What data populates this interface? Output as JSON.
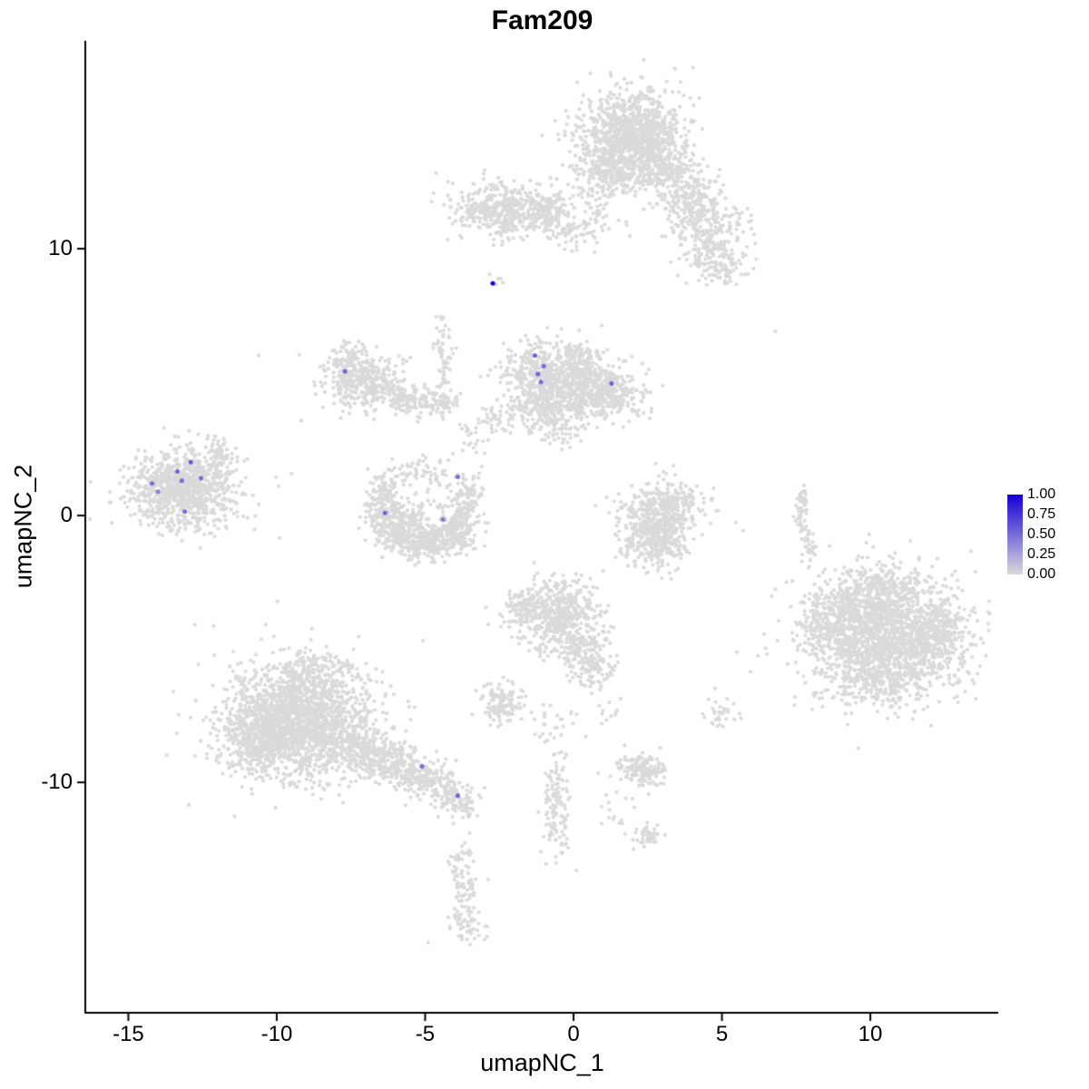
{
  "chart_data": {
    "type": "scatter",
    "title": "Fam209",
    "xlabel": "umapNC_1",
    "ylabel": "umapNC_2",
    "xlim": [
      -16.42,
      14.31
    ],
    "ylim": [
      -18.6,
      17.79
    ],
    "grid": false,
    "xticks": [
      "-15",
      "-10",
      "-5",
      "0",
      "5",
      "10"
    ],
    "xtick_values": [
      -15,
      -10,
      -5,
      0,
      5,
      10
    ],
    "yticks": [
      "10",
      "0",
      "-10"
    ],
    "ytick_values": [
      10,
      0,
      -10
    ],
    "point_color_low": "#DADADA",
    "point_color_high": "#1400D6",
    "legend": {
      "ticks": [
        "1.00",
        "0.75",
        "0.50",
        "0.25",
        "0.00"
      ],
      "position": "right"
    },
    "background_clusters_format": "[center_x, center_y, sd_x, sd_y, n_points, rotation_deg]",
    "background_clusters": [
      [
        1.95,
        14.1,
        0.78,
        0.88,
        900,
        0
      ],
      [
        1.95,
        14.1,
        1.15,
        1.25,
        280,
        0
      ],
      [
        1.2,
        12.9,
        0.5,
        0.5,
        130,
        0
      ],
      [
        3.3,
        12.9,
        0.45,
        0.5,
        150,
        0
      ],
      [
        3.95,
        11.7,
        0.5,
        0.6,
        180,
        0
      ],
      [
        4.6,
        10.5,
        0.55,
        0.7,
        220,
        0
      ],
      [
        5.05,
        9.4,
        0.4,
        0.4,
        80,
        0
      ],
      [
        0.85,
        11.6,
        0.35,
        0.5,
        40,
        0
      ],
      [
        -2.5,
        11.45,
        0.78,
        0.45,
        420,
        -8
      ],
      [
        -0.75,
        11.5,
        0.55,
        0.4,
        180,
        0
      ],
      [
        0.1,
        10.65,
        0.4,
        0.3,
        60,
        0
      ],
      [
        -2.7,
        8.8,
        0.18,
        0.12,
        5,
        0
      ],
      [
        -7.15,
        5.1,
        0.62,
        0.58,
        380,
        0
      ],
      [
        -7.6,
        6.0,
        0.3,
        0.22,
        40,
        0
      ],
      [
        -5.6,
        4.4,
        0.55,
        0.3,
        130,
        -15
      ],
      [
        -4.6,
        4.2,
        0.4,
        0.25,
        70,
        0
      ],
      [
        -4.4,
        6.0,
        0.13,
        0.9,
        60,
        0
      ],
      [
        -0.9,
        5.2,
        0.7,
        0.65,
        550,
        0
      ],
      [
        0.3,
        5.6,
        0.42,
        0.45,
        150,
        0
      ],
      [
        1.25,
        4.7,
        0.5,
        0.5,
        250,
        0
      ],
      [
        0.5,
        4.4,
        0.4,
        0.3,
        120,
        0
      ],
      [
        -0.8,
        3.9,
        0.8,
        0.35,
        180,
        0
      ],
      [
        -0.6,
        3.1,
        0.5,
        0.3,
        50,
        0
      ],
      [
        -2.5,
        3.6,
        0.45,
        0.35,
        35,
        0
      ],
      [
        -3.4,
        2.8,
        0.3,
        0.3,
        20,
        0
      ],
      [
        2.1,
        4.3,
        0.3,
        0.3,
        15,
        0
      ],
      [
        -6.4,
        0.9,
        0.3,
        0.35,
        80,
        0
      ],
      [
        -6.3,
        0.1,
        0.35,
        0.45,
        130,
        0
      ],
      [
        -5.9,
        -0.6,
        0.45,
        0.4,
        160,
        0
      ],
      [
        -5.0,
        -1.0,
        0.6,
        0.35,
        220,
        0
      ],
      [
        -4.1,
        -0.7,
        0.4,
        0.4,
        160,
        0
      ],
      [
        -3.7,
        0.1,
        0.3,
        0.4,
        90,
        0
      ],
      [
        -3.6,
        0.9,
        0.25,
        0.35,
        60,
        0
      ],
      [
        -5.0,
        0.2,
        0.5,
        0.3,
        40,
        0
      ],
      [
        -4.6,
        1.6,
        0.35,
        0.3,
        40,
        0
      ],
      [
        -5.6,
        1.6,
        0.3,
        0.25,
        30,
        0
      ],
      [
        -13.2,
        1.05,
        0.8,
        0.62,
        750,
        0
      ],
      [
        -13.2,
        1.05,
        1.15,
        0.85,
        200,
        0
      ],
      [
        -11.9,
        2.3,
        0.3,
        0.35,
        60,
        0
      ],
      [
        -13.0,
        -0.3,
        0.6,
        0.25,
        40,
        0
      ],
      [
        3.1,
        0.3,
        0.6,
        0.5,
        300,
        0
      ],
      [
        2.7,
        -0.9,
        0.55,
        0.5,
        300,
        0
      ],
      [
        2.9,
        -0.3,
        0.85,
        0.9,
        100,
        0
      ],
      [
        7.7,
        0.6,
        0.1,
        0.3,
        25,
        0
      ],
      [
        7.62,
        -0.1,
        0.1,
        0.3,
        25,
        0
      ],
      [
        7.8,
        -0.8,
        0.12,
        0.25,
        20,
        0
      ],
      [
        8.0,
        -1.3,
        0.1,
        0.15,
        12,
        0
      ],
      [
        10.6,
        -4.4,
        1.25,
        1.05,
        1500,
        0
      ],
      [
        8.8,
        -3.9,
        0.6,
        0.8,
        250,
        0
      ],
      [
        10.4,
        -2.7,
        0.8,
        0.4,
        150,
        0
      ],
      [
        10.2,
        -6.2,
        0.9,
        0.45,
        200,
        0
      ],
      [
        12.3,
        -4.6,
        0.4,
        0.7,
        120,
        0
      ],
      [
        10.4,
        -4.4,
        1.7,
        1.45,
        250,
        0
      ],
      [
        -0.6,
        -3.8,
        0.7,
        0.6,
        450,
        0
      ],
      [
        -1.7,
        -3.4,
        0.3,
        0.3,
        60,
        0
      ],
      [
        0.3,
        -5.0,
        0.45,
        0.5,
        150,
        0
      ],
      [
        0.7,
        -5.9,
        0.3,
        0.35,
        60,
        0
      ],
      [
        -0.3,
        -2.8,
        0.4,
        0.25,
        40,
        0
      ],
      [
        -2.4,
        -7.0,
        0.35,
        0.4,
        130,
        0
      ],
      [
        5.0,
        -7.4,
        0.3,
        0.3,
        35,
        0
      ],
      [
        2.3,
        -9.5,
        0.38,
        0.3,
        170,
        0
      ],
      [
        -0.6,
        -10.8,
        0.22,
        1.0,
        130,
        0
      ],
      [
        2.55,
        -12.0,
        0.3,
        0.25,
        45,
        0
      ],
      [
        1.4,
        -11.2,
        0.4,
        0.4,
        15,
        0
      ],
      [
        -0.7,
        -7.9,
        0.45,
        0.45,
        25,
        0
      ],
      [
        1.2,
        -7.3,
        0.3,
        0.3,
        12,
        0
      ],
      [
        -9.4,
        -7.8,
        1.15,
        0.95,
        1600,
        0
      ],
      [
        -9.4,
        -7.8,
        1.6,
        1.3,
        300,
        0
      ],
      [
        -8.8,
        -5.9,
        0.7,
        0.4,
        180,
        0
      ],
      [
        -10.7,
        -8.3,
        0.5,
        0.7,
        200,
        0
      ],
      [
        -7.2,
        -8.8,
        0.7,
        0.45,
        250,
        -25
      ],
      [
        -6.0,
        -9.3,
        0.55,
        0.35,
        180,
        -25
      ],
      [
        -5.0,
        -9.8,
        0.45,
        0.35,
        140,
        -30
      ],
      [
        -4.2,
        -10.4,
        0.4,
        0.3,
        110,
        -30
      ],
      [
        -3.7,
        -11.0,
        0.2,
        0.25,
        25,
        0
      ],
      [
        -3.7,
        -14.2,
        0.22,
        0.75,
        90,
        0
      ],
      [
        -3.6,
        -15.5,
        0.3,
        0.25,
        35,
        0
      ],
      [
        -4.0,
        -12.9,
        0.2,
        0.2,
        15,
        0
      ]
    ],
    "singleton_points": [
      [
        6.8,
        6.9
      ],
      [
        -10.6,
        6.0
      ],
      [
        -4.9,
        -16.0
      ],
      [
        -2.9,
        -15.4
      ],
      [
        0.1,
        -13.3
      ],
      [
        -3.5,
        -11.9
      ]
    ],
    "highlight_points_format": "[x, y, expression_value_0_to_1]",
    "highlight_points": [
      [
        -2.72,
        8.7,
        1.0
      ],
      [
        -7.7,
        5.4,
        0.55
      ],
      [
        -1.3,
        6.0,
        0.55
      ],
      [
        -1.0,
        5.6,
        0.5
      ],
      [
        -1.2,
        5.3,
        0.55
      ],
      [
        -1.1,
        5.0,
        0.5
      ],
      [
        1.28,
        4.95,
        0.55
      ],
      [
        -14.2,
        1.2,
        0.5
      ],
      [
        -14.0,
        0.9,
        0.45
      ],
      [
        -13.35,
        1.65,
        0.55
      ],
      [
        -13.2,
        1.3,
        0.5
      ],
      [
        -12.9,
        2.0,
        0.6
      ],
      [
        -12.55,
        1.4,
        0.5
      ],
      [
        -13.1,
        0.15,
        0.5
      ],
      [
        -3.9,
        1.45,
        0.5
      ],
      [
        -6.35,
        0.1,
        0.55
      ],
      [
        -4.4,
        -0.15,
        0.45
      ],
      [
        -5.1,
        -9.4,
        0.5
      ],
      [
        -3.9,
        -10.5,
        0.55
      ]
    ]
  }
}
